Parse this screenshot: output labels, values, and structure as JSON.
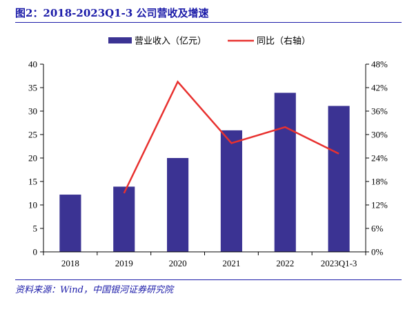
{
  "figure": {
    "title": "图2：2018-2023Q1-3 公司营收及增速",
    "source": "资料来源：Wind，中国银河证券研究院"
  },
  "chart_data": {
    "type": "bar",
    "categories": [
      "2018",
      "2019",
      "2020",
      "2021",
      "2022",
      "2023Q1-3"
    ],
    "series": [
      {
        "name": "营业收入（亿元）",
        "type": "bar",
        "axis": "left",
        "color": "#3b3393",
        "values": [
          12.2,
          13.9,
          20.0,
          25.9,
          33.9,
          31.1
        ]
      },
      {
        "name": "同比（右轴）",
        "type": "line",
        "axis": "right",
        "color": "#e8312f",
        "values": [
          null,
          15,
          43.5,
          27.8,
          31.9,
          25.1
        ]
      }
    ],
    "ylim": [
      0,
      40
    ],
    "yticks": [
      "0",
      "5",
      "10",
      "15",
      "20",
      "25",
      "30",
      "35",
      "40"
    ],
    "y2lim": [
      0,
      48
    ],
    "y2ticks": [
      "0%",
      "6%",
      "12%",
      "18%",
      "24%",
      "30%",
      "36%",
      "42%",
      "48%"
    ],
    "y2unit": "%",
    "xlabel": "",
    "ylabel": "",
    "grid": false,
    "legend_position": "top"
  }
}
